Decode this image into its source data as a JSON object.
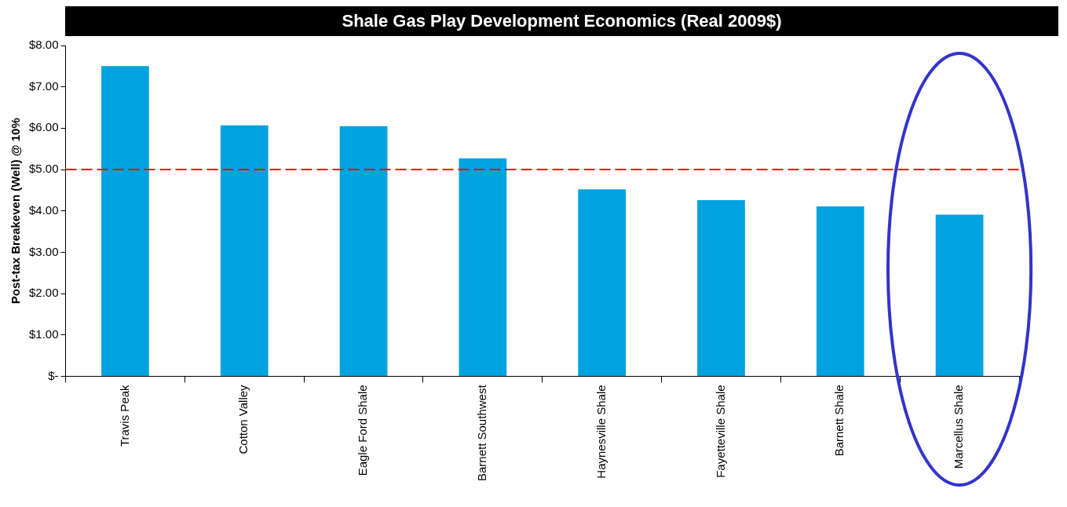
{
  "chart_data": {
    "type": "bar",
    "title": "Shale Gas Play Development Economics (Real 2009$)",
    "ylabel": "Post-tax Breakeven (Well) @ 10%",
    "categories": [
      "Travis Peak",
      "Cotton Valley",
      "Eagle Ford Shale",
      "Barnett Southwest",
      "Haynesville Shale",
      "Fayetteville Shale",
      "Barnett Shale",
      "Marcellus Shale"
    ],
    "values": [
      7.5,
      6.07,
      6.05,
      5.27,
      4.52,
      4.26,
      4.11,
      3.91
    ],
    "color": "#00a2e0",
    "ylim": [
      0,
      8
    ],
    "yticks": [
      {
        "value": 0,
        "label": "$-"
      },
      {
        "value": 1,
        "label": "$1.00"
      },
      {
        "value": 2,
        "label": "$2.00"
      },
      {
        "value": 3,
        "label": "$3.00"
      },
      {
        "value": 4,
        "label": "$4.00"
      },
      {
        "value": 5,
        "label": "$5.00"
      },
      {
        "value": 6,
        "label": "$6.00"
      },
      {
        "value": 7,
        "label": "$7.00"
      },
      {
        "value": 8,
        "label": "$8.00"
      }
    ],
    "ref_lines": [
      {
        "axis": "y",
        "value": 5,
        "color": "#ff0000",
        "line_style": "dashed"
      }
    ],
    "grid": false,
    "legend": false
  }
}
